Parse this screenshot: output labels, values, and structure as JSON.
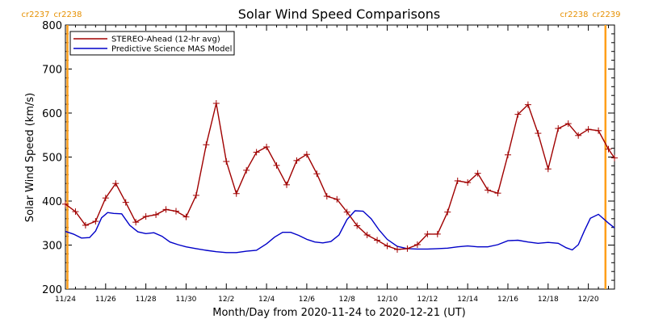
{
  "chart_data": {
    "type": "line",
    "title": "Solar Wind Speed Comparisons",
    "xlabel": "Month/Day from 2020-11-24 to 2020-12-21 (UT)",
    "ylabel": "Solar Wind Speed (km/s)",
    "ylim": [
      200,
      800
    ],
    "xlim_days": [
      0,
      27.3
    ],
    "y_ticks": [
      200,
      300,
      400,
      500,
      600,
      700,
      800
    ],
    "x_ticks": [
      {
        "day": 0,
        "label": "11/24"
      },
      {
        "day": 2,
        "label": "11/26"
      },
      {
        "day": 4,
        "label": "11/28"
      },
      {
        "day": 6,
        "label": "11/30"
      },
      {
        "day": 8,
        "label": "12/2"
      },
      {
        "day": 10,
        "label": "12/4"
      },
      {
        "day": 12,
        "label": "12/6"
      },
      {
        "day": 14,
        "label": "12/8"
      },
      {
        "day": 16,
        "label": "12/10"
      },
      {
        "day": 18,
        "label": "12/12"
      },
      {
        "day": 20,
        "label": "12/14"
      },
      {
        "day": 22,
        "label": "12/16"
      },
      {
        "day": 24,
        "label": "12/18"
      },
      {
        "day": 26,
        "label": "12/20"
      }
    ],
    "grid": false,
    "legend_position": "top-left",
    "carrington_markers": [
      {
        "day": 0.1,
        "left_label": "cr2237",
        "right_label": "cr2238",
        "label_side": "left"
      },
      {
        "day": 26.85,
        "left_label": "cr2238",
        "right_label": "cr2239",
        "label_side": "right"
      }
    ],
    "series": [
      {
        "name": "STEREO-Ahead (12-hr avg)",
        "color": "#a00000",
        "markers": true,
        "x": [
          0.0,
          0.5,
          1.0,
          1.5,
          2.0,
          2.5,
          3.0,
          3.5,
          4.0,
          4.5,
          5.0,
          5.5,
          6.0,
          6.5,
          7.0,
          7.5,
          8.0,
          8.5,
          9.0,
          9.5,
          10.0,
          10.5,
          11.0,
          11.5,
          12.0,
          12.5,
          13.0,
          13.5,
          14.0,
          14.5,
          15.0,
          15.5,
          16.0,
          16.5,
          17.0,
          17.5,
          18.0,
          18.5,
          19.0,
          19.5,
          20.0,
          20.5,
          21.0,
          21.5,
          22.0,
          22.5,
          23.0,
          23.5,
          24.0,
          24.5,
          25.0,
          25.5,
          26.0,
          26.5,
          27.0,
          27.3
        ],
        "y": [
          393,
          376,
          345,
          354,
          407,
          440,
          397,
          352,
          365,
          369,
          381,
          377,
          364,
          413,
          528,
          622,
          490,
          417,
          470,
          511,
          523,
          481,
          437,
          492,
          506,
          462,
          411,
          404,
          375,
          344,
          323,
          311,
          298,
          290,
          292,
          301,
          325,
          325,
          375,
          446,
          442,
          463,
          425,
          418,
          505,
          597,
          619,
          554,
          473,
          565,
          576,
          549,
          563,
          560,
          518,
          498
        ]
      },
      {
        "name": "Predictive Science MAS Model",
        "color": "#0000c8",
        "markers": false,
        "x": [
          0.0,
          0.4,
          0.8,
          1.2,
          1.5,
          1.8,
          2.1,
          2.4,
          2.8,
          3.2,
          3.6,
          4.0,
          4.4,
          4.8,
          5.2,
          5.6,
          6.0,
          6.5,
          7.0,
          7.5,
          8.0,
          8.5,
          9.0,
          9.5,
          10.0,
          10.4,
          10.8,
          11.2,
          11.6,
          12.0,
          12.4,
          12.8,
          13.2,
          13.6,
          14.0,
          14.4,
          14.8,
          15.2,
          15.6,
          16.0,
          16.5,
          17.0,
          17.5,
          18.0,
          18.5,
          19.0,
          19.5,
          20.0,
          20.5,
          21.0,
          21.5,
          22.0,
          22.5,
          23.0,
          23.5,
          24.0,
          24.5,
          24.9,
          25.2,
          25.5,
          25.8,
          26.1,
          26.5,
          27.0,
          27.3
        ],
        "y": [
          331,
          325,
          316,
          317,
          332,
          362,
          374,
          372,
          371,
          345,
          330,
          326,
          328,
          320,
          307,
          301,
          296,
          292,
          288,
          285,
          283,
          283,
          286,
          288,
          303,
          318,
          329,
          329,
          322,
          313,
          307,
          305,
          308,
          323,
          358,
          378,
          377,
          360,
          334,
          313,
          297,
          292,
          291,
          291,
          292,
          293,
          296,
          298,
          296,
          296,
          301,
          310,
          311,
          307,
          304,
          306,
          304,
          294,
          289,
          301,
          332,
          361,
          370,
          350,
          339
        ]
      }
    ]
  }
}
